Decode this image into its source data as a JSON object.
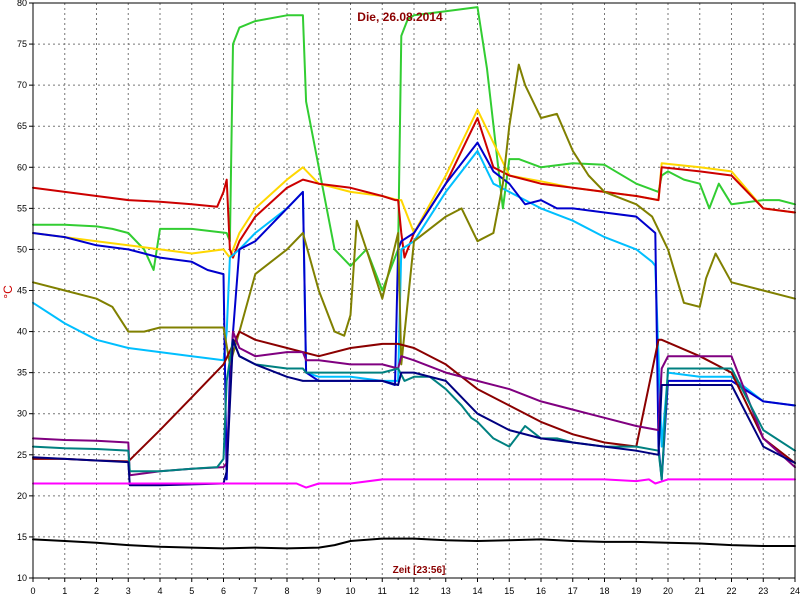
{
  "chart_data": {
    "type": "line",
    "title": "Die, 26.08.2014",
    "xlabel": "Zeit [23:56]",
    "ylabel": "°C",
    "xlim": [
      0,
      24
    ],
    "ylim": [
      10,
      80
    ],
    "x_ticks": [
      0,
      1,
      2,
      3,
      4,
      5,
      6,
      7,
      8,
      9,
      10,
      11,
      12,
      13,
      14,
      15,
      16,
      17,
      18,
      19,
      20,
      21,
      22,
      23,
      24
    ],
    "y_ticks": [
      10,
      15,
      20,
      25,
      30,
      35,
      40,
      45,
      50,
      55,
      60,
      65,
      70,
      75,
      80
    ],
    "grid": true,
    "series": [
      {
        "color": "#32cd32",
        "x": [
          0,
          1,
          2,
          2.5,
          3,
          3.5,
          3.8,
          4,
          5,
          6.1,
          6.2,
          6.3,
          6.5,
          7,
          8,
          8.5,
          8.6,
          9,
          9.5,
          10,
          10.5,
          11,
          11.5,
          11.6,
          11.8,
          12,
          13,
          14,
          14.3,
          14.8,
          15,
          15.3,
          16,
          17,
          18,
          19,
          19.7,
          19.8,
          20,
          20.5,
          21,
          21.3,
          21.6,
          22,
          23,
          23.5,
          24
        ],
        "y": [
          53,
          53,
          52.8,
          52.5,
          52,
          50,
          47.5,
          52.5,
          52.5,
          52,
          51,
          75,
          77,
          77.8,
          78.5,
          78.5,
          68,
          60,
          50,
          48,
          50,
          45,
          50,
          76,
          78,
          78.5,
          79,
          79.5,
          72,
          55,
          61,
          61,
          60,
          60.5,
          60.3,
          58,
          57,
          59,
          59.5,
          58.5,
          58,
          55,
          58,
          55.5,
          56,
          56,
          55.5
        ]
      },
      {
        "color": "#ffd700",
        "x": [
          0,
          1,
          2,
          3,
          4,
          5,
          6,
          6.2,
          6.5,
          7,
          8,
          8.5,
          9,
          10,
          11,
          11.5,
          11.6,
          12,
          13,
          14,
          15,
          16,
          17,
          18,
          19,
          19.7,
          19.8,
          21,
          22,
          23,
          24
        ],
        "y": [
          52,
          51.5,
          51,
          50.5,
          50,
          49.5,
          50,
          49,
          52,
          55,
          58.5,
          60,
          58,
          57,
          56.5,
          56,
          56,
          52,
          59,
          67,
          59,
          58.3,
          57.5,
          57,
          56.5,
          56,
          60.5,
          60,
          59.5,
          55,
          54.5
        ]
      },
      {
        "color": "#cc0000",
        "x": [
          0,
          1,
          2,
          3,
          4,
          5,
          5.8,
          6,
          6.1,
          6.2,
          6.3,
          6.5,
          7,
          8,
          8.5,
          9,
          10,
          11,
          11.4,
          11.5,
          11.6,
          11.7,
          12,
          13,
          14,
          14.5,
          15,
          16,
          17,
          18,
          19,
          19.7,
          19.8,
          21,
          22,
          23,
          24
        ],
        "y": [
          57.5,
          57,
          56.5,
          56,
          55.8,
          55.5,
          55.2,
          57,
          58.5,
          50,
          49,
          51,
          54,
          57.5,
          58.5,
          58,
          57.5,
          56.5,
          56,
          56,
          52,
          49,
          52,
          58,
          66,
          60,
          59,
          58,
          57.5,
          57,
          56.5,
          56,
          60,
          59.5,
          59,
          55,
          54.5
        ]
      },
      {
        "color": "#00bfff",
        "x": [
          0,
          1,
          2,
          3,
          4,
          5,
          6,
          6.1,
          6.2,
          6.5,
          7,
          8,
          8.5,
          8.6,
          9,
          10,
          11,
          11.5,
          11.6,
          12,
          13,
          14,
          14.5,
          15,
          16,
          17,
          18,
          19,
          19.5,
          19.6,
          19.8,
          20,
          21,
          22,
          23,
          24
        ],
        "y": [
          43.5,
          41,
          39,
          38,
          37.5,
          37,
          36.5,
          40,
          49,
          50,
          52,
          55,
          57,
          35,
          34.5,
          34.5,
          34,
          34,
          50,
          51,
          57,
          62,
          58,
          57,
          55,
          53.5,
          51.5,
          50,
          48.5,
          48,
          26,
          35,
          34.5,
          34.5,
          31.5,
          31
        ]
      },
      {
        "color": "#0000cd",
        "x": [
          0,
          1,
          2,
          3,
          4,
          5,
          5.5,
          6,
          6.1,
          6.2,
          6.5,
          7,
          8,
          8.5,
          8.6,
          9,
          10,
          11,
          11.4,
          11.5,
          11.6,
          12,
          13,
          14,
          14.5,
          15,
          15.5,
          16,
          16.5,
          17,
          18,
          19,
          19.6,
          19.7,
          19.8,
          20,
          21,
          22,
          23,
          24
        ],
        "y": [
          52,
          51.5,
          50.5,
          50,
          49,
          48.5,
          47.5,
          47,
          22,
          35,
          50,
          51,
          55,
          57,
          35,
          34,
          34,
          34,
          33.5,
          50,
          51,
          52,
          58,
          63,
          59.5,
          58,
          55.5,
          56,
          55,
          55,
          54.5,
          54,
          52,
          26,
          22,
          34,
          34,
          34,
          31.5,
          31
        ]
      },
      {
        "color": "#808000",
        "x": [
          0,
          1,
          2,
          2.5,
          3,
          3.5,
          4,
          5,
          6,
          6.2,
          6.5,
          7,
          8,
          8.5,
          9,
          9.5,
          9.8,
          10,
          10.2,
          10.5,
          11,
          11.5,
          11.6,
          12,
          13,
          13.5,
          14,
          14.5,
          14.8,
          15,
          15.3,
          15.5,
          16,
          16.5,
          17,
          17.5,
          18,
          19,
          19.5,
          20,
          20.5,
          21,
          21.2,
          21.5,
          22,
          23,
          24
        ],
        "y": [
          46,
          45,
          44,
          43,
          40,
          40,
          40.5,
          40.5,
          40.5,
          36,
          40,
          47,
          50,
          52,
          45,
          40,
          39.5,
          42,
          53.5,
          50,
          44,
          52,
          36,
          51,
          54,
          55,
          51,
          52,
          58,
          65,
          72.5,
          70,
          66,
          66.5,
          62,
          59,
          57,
          55.5,
          54,
          50,
          43.5,
          43,
          46.5,
          49.5,
          46,
          45,
          44
        ]
      },
      {
        "color": "#8b0000",
        "x": [
          0,
          1,
          2,
          3,
          4,
          5,
          6,
          6.5,
          7,
          8,
          8.5,
          9,
          10,
          11,
          11.5,
          12,
          13,
          14,
          15,
          16,
          17,
          18,
          19,
          19.7,
          19.8,
          21,
          22,
          23,
          24
        ],
        "y": [
          24.5,
          24.5,
          24.3,
          24.2,
          28,
          32,
          36,
          40,
          39,
          38,
          37.5,
          37,
          38,
          38.5,
          38.5,
          38,
          36,
          33,
          31,
          29,
          27.5,
          26.5,
          26,
          39,
          39,
          37,
          35,
          27,
          24
        ]
      },
      {
        "color": "#800080",
        "x": [
          0,
          1,
          2,
          3,
          3.05,
          4,
          5,
          6,
          6.1,
          6.3,
          6.5,
          7,
          8,
          8.5,
          8.6,
          9,
          10,
          11,
          11.5,
          11.6,
          12,
          13,
          14,
          15,
          16,
          17,
          18,
          19,
          19.7,
          19.8,
          20,
          21,
          22,
          23,
          24
        ],
        "y": [
          27,
          26.8,
          26.7,
          26.5,
          22.5,
          23,
          23.3,
          23.5,
          24,
          40,
          38,
          37,
          37.5,
          37.5,
          36.5,
          36.5,
          36,
          36,
          35.5,
          37,
          36.5,
          35,
          34,
          33,
          31.5,
          30.5,
          29.5,
          28.5,
          28,
          35.5,
          37,
          37,
          37,
          27,
          23.5
        ]
      },
      {
        "color": "#008080",
        "x": [
          0,
          1,
          2,
          3,
          3.05,
          4,
          5,
          5.8,
          6,
          6.1,
          6.3,
          6.5,
          7,
          8,
          8.5,
          8.6,
          9,
          9.5,
          10,
          11,
          11.5,
          11.7,
          12,
          12.5,
          13,
          13.5,
          13.8,
          14,
          14.5,
          15,
          15.3,
          15.5,
          16,
          16.5,
          17,
          18,
          19,
          19.7,
          19.8,
          20,
          21,
          22,
          23,
          24
        ],
        "y": [
          26,
          25.8,
          25.7,
          25.5,
          23,
          23,
          23.3,
          23.5,
          24.5,
          34,
          39,
          37,
          36,
          35.5,
          35.5,
          35,
          35,
          35,
          35,
          35,
          35.5,
          34,
          34.5,
          34.5,
          33,
          31,
          29.5,
          29,
          27,
          26,
          27.5,
          28.5,
          27,
          27,
          26.5,
          26,
          26,
          25.5,
          22,
          35.5,
          35.5,
          35.5,
          28,
          25.5
        ]
      },
      {
        "color": "#000080",
        "x": [
          0,
          1,
          2,
          3,
          3.05,
          4,
          5,
          6,
          6.1,
          6.3,
          6.5,
          7,
          8,
          8.5,
          8.6,
          9,
          10,
          11,
          11.5,
          11.6,
          12,
          13,
          14,
          14.5,
          15,
          16,
          17,
          18,
          19,
          19.7,
          19.8,
          20,
          21,
          22,
          23,
          24
        ],
        "y": [
          24.7,
          24.5,
          24.3,
          24.1,
          21.3,
          21.3,
          21.4,
          21.5,
          23,
          39,
          37,
          36,
          34.5,
          34,
          34,
          34,
          34,
          34,
          33.5,
          35,
          35,
          34,
          30,
          29,
          28,
          27,
          26.5,
          26,
          25.5,
          25,
          33.5,
          33.5,
          33.5,
          33.5,
          26,
          24
        ]
      },
      {
        "color": "#ff00ff",
        "x": [
          0,
          1,
          2,
          3,
          4,
          5,
          6,
          7,
          8,
          8.3,
          8.6,
          9,
          10,
          11,
          12,
          13,
          14,
          15,
          16,
          17,
          18,
          19,
          19.4,
          19.6,
          20,
          21,
          22,
          23,
          24
        ],
        "y": [
          21.5,
          21.5,
          21.5,
          21.5,
          21.5,
          21.5,
          21.5,
          21.5,
          21.5,
          21.5,
          21,
          21.5,
          21.5,
          22,
          22,
          22,
          22,
          22,
          22,
          22,
          22,
          21.8,
          22,
          21.5,
          22,
          22,
          22,
          22,
          22
        ]
      },
      {
        "color": "#000000",
        "x": [
          0,
          1,
          2,
          3,
          4,
          5,
          6,
          7,
          8,
          9,
          9.5,
          10,
          11,
          12,
          13,
          14,
          15,
          16,
          17,
          18,
          19,
          20,
          21,
          22,
          23,
          24
        ],
        "y": [
          14.7,
          14.5,
          14.3,
          14,
          13.8,
          13.7,
          13.6,
          13.7,
          13.6,
          13.7,
          14,
          14.5,
          14.8,
          14.8,
          14.6,
          14.5,
          14.6,
          14.7,
          14.5,
          14.4,
          14.4,
          14.3,
          14.2,
          14,
          13.9,
          13.9
        ]
      }
    ]
  }
}
